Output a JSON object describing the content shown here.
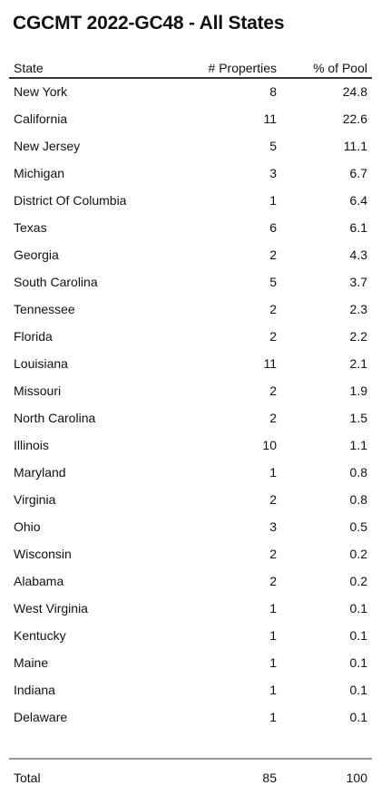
{
  "title": "CGCMT 2022-GC48 - All States",
  "columns": {
    "state": "State",
    "properties": "# Properties",
    "pool": "% of Pool"
  },
  "rows": [
    {
      "state": "New York",
      "properties": "8",
      "pool": "24.8"
    },
    {
      "state": "California",
      "properties": "11",
      "pool": "22.6"
    },
    {
      "state": "New Jersey",
      "properties": "5",
      "pool": "11.1"
    },
    {
      "state": "Michigan",
      "properties": "3",
      "pool": "6.7"
    },
    {
      "state": "District Of Columbia",
      "properties": "1",
      "pool": "6.4"
    },
    {
      "state": "Texas",
      "properties": "6",
      "pool": "6.1"
    },
    {
      "state": "Georgia",
      "properties": "2",
      "pool": "4.3"
    },
    {
      "state": "South Carolina",
      "properties": "5",
      "pool": "3.7"
    },
    {
      "state": "Tennessee",
      "properties": "2",
      "pool": "2.3"
    },
    {
      "state": "Florida",
      "properties": "2",
      "pool": "2.2"
    },
    {
      "state": "Louisiana",
      "properties": "11",
      "pool": "2.1"
    },
    {
      "state": "Missouri",
      "properties": "2",
      "pool": "1.9"
    },
    {
      "state": "North Carolina",
      "properties": "2",
      "pool": "1.5"
    },
    {
      "state": "Illinois",
      "properties": "10",
      "pool": "1.1"
    },
    {
      "state": "Maryland",
      "properties": "1",
      "pool": "0.8"
    },
    {
      "state": "Virginia",
      "properties": "2",
      "pool": "0.8"
    },
    {
      "state": "Ohio",
      "properties": "3",
      "pool": "0.5"
    },
    {
      "state": "Wisconsin",
      "properties": "2",
      "pool": "0.2"
    },
    {
      "state": "Alabama",
      "properties": "2",
      "pool": "0.2"
    },
    {
      "state": "West Virginia",
      "properties": "1",
      "pool": "0.1"
    },
    {
      "state": "Kentucky",
      "properties": "1",
      "pool": "0.1"
    },
    {
      "state": "Maine",
      "properties": "1",
      "pool": "0.1"
    },
    {
      "state": "Indiana",
      "properties": "1",
      "pool": "0.1"
    },
    {
      "state": "Delaware",
      "properties": "1",
      "pool": "0.1"
    }
  ],
  "total": {
    "label": "Total",
    "properties": "85",
    "pool": "100"
  }
}
